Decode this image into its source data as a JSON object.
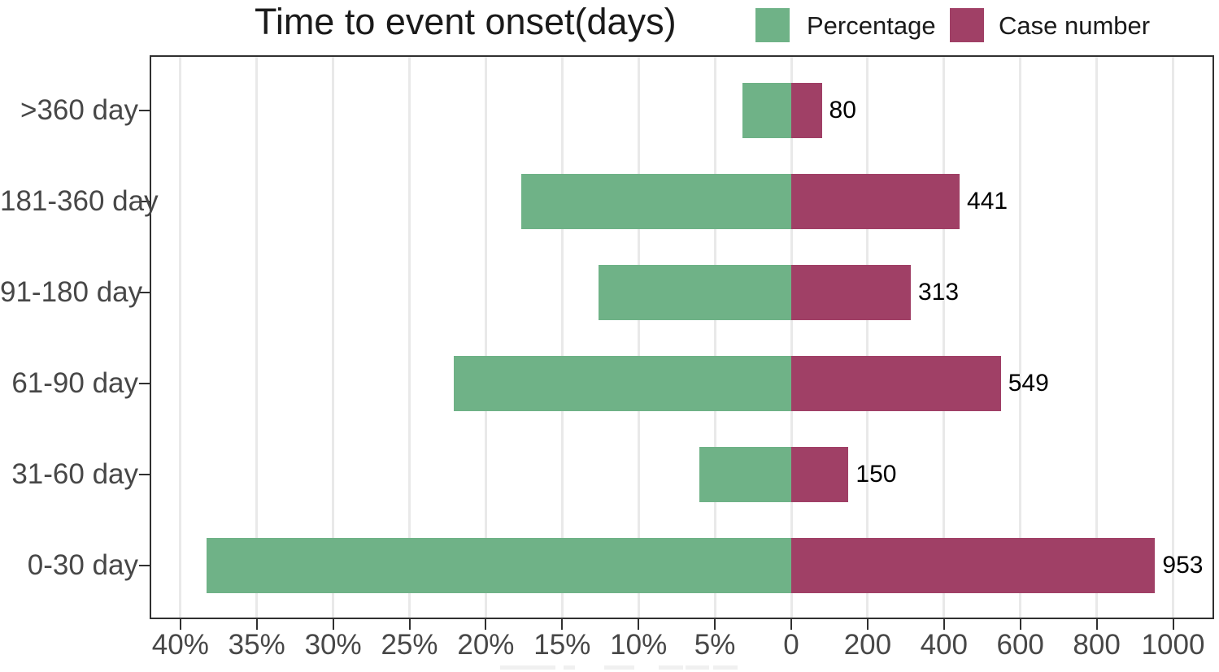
{
  "chart": {
    "title": "Time to event onset(days)",
    "colors": {
      "percentage": "#6fb287",
      "case_number": "#a04066",
      "axis": "#303030",
      "gridline": "#e9e9e9",
      "tick_text": "#474747"
    },
    "legend": [
      {
        "label": "Percentage",
        "color_key": "percentage"
      },
      {
        "label": "Case number",
        "color_key": "case_number"
      }
    ]
  },
  "chart_data": {
    "type": "bar",
    "orientation": "horizontal-diverging",
    "title": "Time to event onset(days)",
    "categories": [
      ">360 day",
      "181-360 day",
      "91-180 day",
      "61-90 day",
      "31-60 day",
      "0-30 day"
    ],
    "series": [
      {
        "name": "Percentage",
        "side": "left",
        "unit": "%",
        "values": [
          3.2,
          17.7,
          12.6,
          22.1,
          6.0,
          38.3
        ]
      },
      {
        "name": "Case number",
        "side": "right",
        "unit": "cases",
        "values": [
          80,
          441,
          313,
          549,
          150,
          953
        ]
      }
    ],
    "bar_labels": [
      "80",
      "441",
      "313",
      "549",
      "150",
      "953"
    ],
    "x_tick_labels": [
      "40%",
      "35%",
      "30%",
      "25%",
      "20%",
      "15%",
      "10%",
      "5%",
      "0",
      "200",
      "400",
      "600",
      "800",
      "1000"
    ],
    "axis_zero_shared": true,
    "grid": "vertical-only",
    "legend_position": "top-right",
    "xlim_left_pct": [
      0,
      42
    ],
    "xlim_right_cases": [
      0,
      1107
    ]
  }
}
